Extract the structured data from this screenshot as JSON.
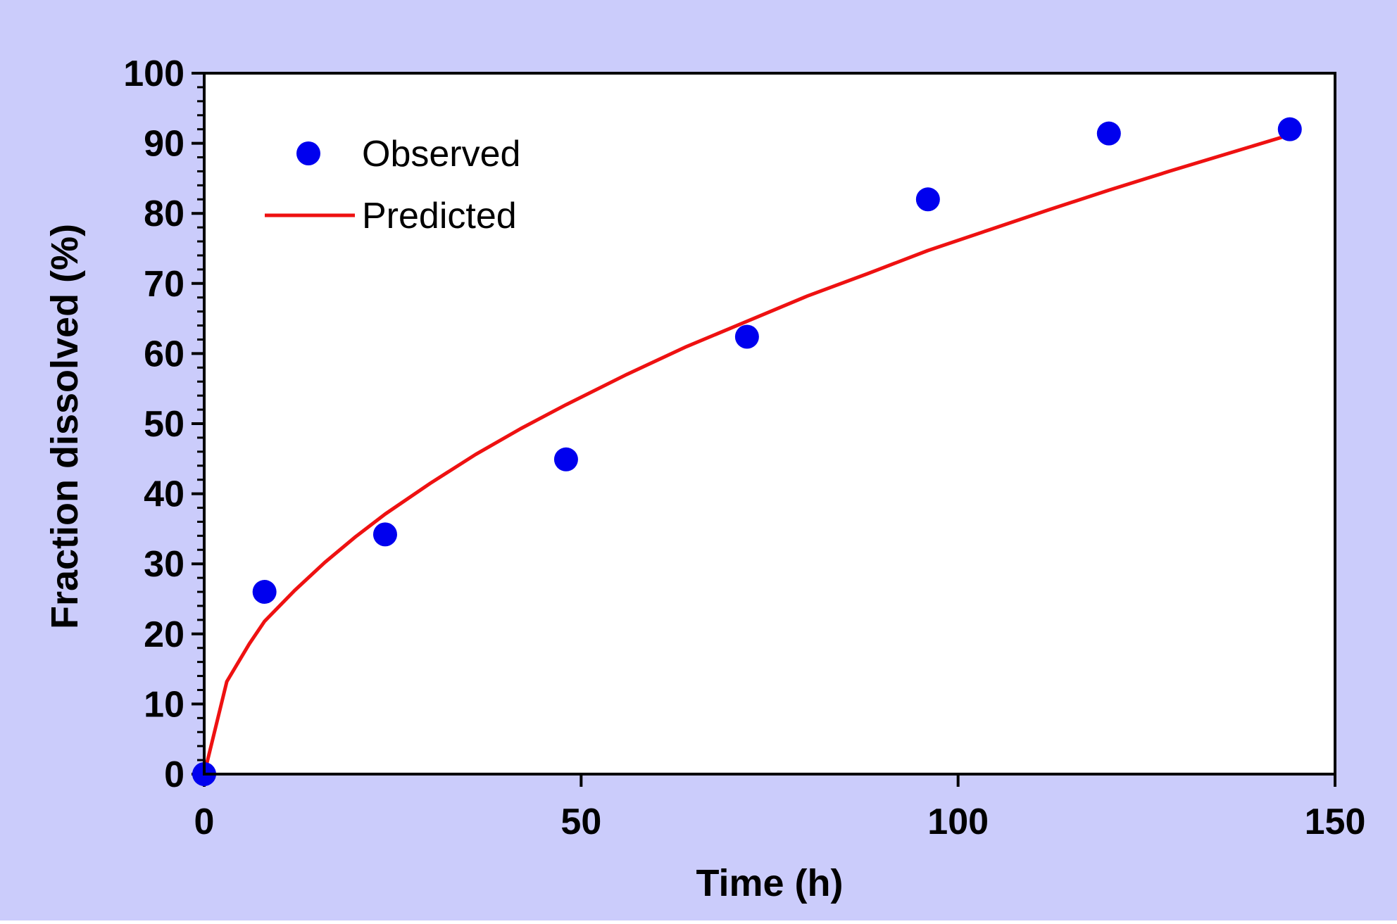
{
  "colors": {
    "background": "#CBCCFB",
    "plot_area": "#FFFFFF",
    "axis": "#000000",
    "observed": "#0000EE",
    "predicted": "#EE1111"
  },
  "chart_data": {
    "type": "scatter",
    "xlabel": "Time (h)",
    "ylabel": "Fraction dissolved (%)",
    "xlim": [
      0,
      150
    ],
    "ylim": [
      0,
      100
    ],
    "xticks": [
      "0",
      "50",
      "100",
      "150"
    ],
    "yticks": [
      "0",
      "10",
      "20",
      "30",
      "40",
      "50",
      "60",
      "70",
      "80",
      "90",
      "100"
    ],
    "grid": false,
    "legend_position": "top-left",
    "series": [
      {
        "name": "Observed",
        "kind": "scatter",
        "color": "#0000EE",
        "x": [
          0,
          8,
          24,
          48,
          72,
          96,
          120,
          144
        ],
        "y": [
          0,
          26,
          34.2,
          44.9,
          62.4,
          82,
          91.4,
          92
        ]
      },
      {
        "name": "Predicted",
        "kind": "line",
        "color": "#EE1111",
        "x": [
          0,
          3,
          6,
          8,
          12,
          16,
          20,
          24,
          30,
          36,
          42,
          48,
          56,
          64,
          72,
          80,
          88,
          96,
          104,
          112,
          120,
          128,
          136,
          144
        ],
        "y": [
          0,
          13.2,
          18.6,
          21.8,
          26.2,
          30.2,
          33.8,
          37.1,
          41.5,
          45.6,
          49.3,
          52.7,
          57.0,
          61.0,
          64.6,
          68.2,
          71.4,
          74.7,
          77.6,
          80.5,
          83.3,
          86.0,
          88.6,
          91.2
        ]
      }
    ]
  }
}
